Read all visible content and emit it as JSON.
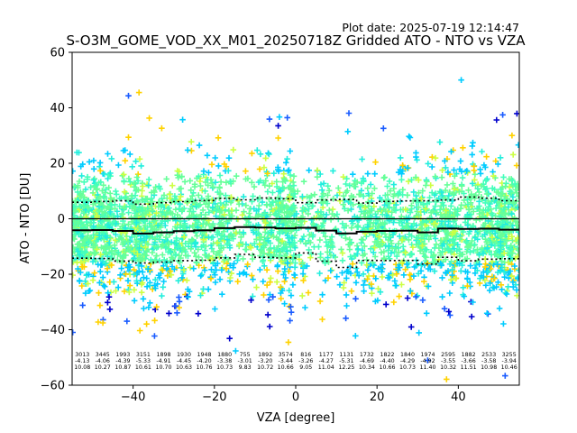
{
  "chart_data": {
    "type": "scatter",
    "plot_date": "Plot date: 2025-07-19 12:14:47",
    "title": "S-O3M_GOME_VOD_XX_M01_20250718Z Gridded ATO - NTO vs VZA",
    "xlabel": "VZA [degree]",
    "ylabel": "ATO - NTO [DU]",
    "xlim": [
      -55,
      55
    ],
    "ylim": [
      -60,
      60
    ],
    "xticks": [
      -40,
      -20,
      0,
      20,
      40
    ],
    "yticks": [
      -60,
      -40,
      -20,
      0,
      20,
      40,
      60
    ],
    "grid": false,
    "legend": "none",
    "zero_line": 0,
    "bins": [
      {
        "x": -52.5,
        "n": "3013",
        "mean": "-4.13",
        "std": "10.08"
      },
      {
        "x": -47.5,
        "n": "3445",
        "mean": "-4.06",
        "std": "10.27"
      },
      {
        "x": -42.5,
        "n": "1993",
        "mean": "-4.39",
        "std": "10.87"
      },
      {
        "x": -37.5,
        "n": "3151",
        "mean": "-5.33",
        "std": "10.61"
      },
      {
        "x": -32.5,
        "n": "1898",
        "mean": "-4.91",
        "std": "10.70"
      },
      {
        "x": -27.5,
        "n": "1930",
        "mean": "-4.45",
        "std": "10.63"
      },
      {
        "x": -22.5,
        "n": "1948",
        "mean": "-4.20",
        "std": "10.76"
      },
      {
        "x": -17.5,
        "n": "1880",
        "mean": "-3.38",
        "std": "10.73"
      },
      {
        "x": -12.5,
        "n": "755",
        "mean": "-3.01",
        "std": "9.83"
      },
      {
        "x": -7.5,
        "n": "1892",
        "mean": "-3.20",
        "std": "10.72"
      },
      {
        "x": -2.5,
        "n": "3574",
        "mean": "-3.44",
        "std": "10.66"
      },
      {
        "x": 2.5,
        "n": "816",
        "mean": "-3.26",
        "std": "9.05"
      },
      {
        "x": 7.5,
        "n": "1177",
        "mean": "-4.27",
        "std": "11.04"
      },
      {
        "x": 12.5,
        "n": "1131",
        "mean": "-5.31",
        "std": "12.25"
      },
      {
        "x": 17.5,
        "n": "1732",
        "mean": "-4.69",
        "std": "10.34"
      },
      {
        "x": 22.5,
        "n": "1822",
        "mean": "-4.40",
        "std": "10.66"
      },
      {
        "x": 27.5,
        "n": "1840",
        "mean": "-4.29",
        "std": "10.73"
      },
      {
        "x": 32.5,
        "n": "1974",
        "mean": "-4.92",
        "std": "11.40"
      },
      {
        "x": 37.5,
        "n": "2595",
        "mean": "-3.55",
        "std": "10.32"
      },
      {
        "x": 42.5,
        "n": "1882",
        "mean": "-3.66",
        "std": "11.51"
      },
      {
        "x": 47.5,
        "n": "2533",
        "mean": "-3.58",
        "std": "10.98"
      },
      {
        "x": 52.5,
        "n": "3255",
        "mean": "-3.94",
        "std": "10.46"
      }
    ],
    "colors": {
      "marker_palette": [
        "#66ff99",
        "#44ffbb",
        "#22eedd",
        "#00ccff",
        "#ffd200",
        "#ccff44",
        "#1a5cff",
        "#0000cc"
      ],
      "mean_line": "#000000",
      "std_line": "#000000",
      "axes": "#000000"
    }
  }
}
